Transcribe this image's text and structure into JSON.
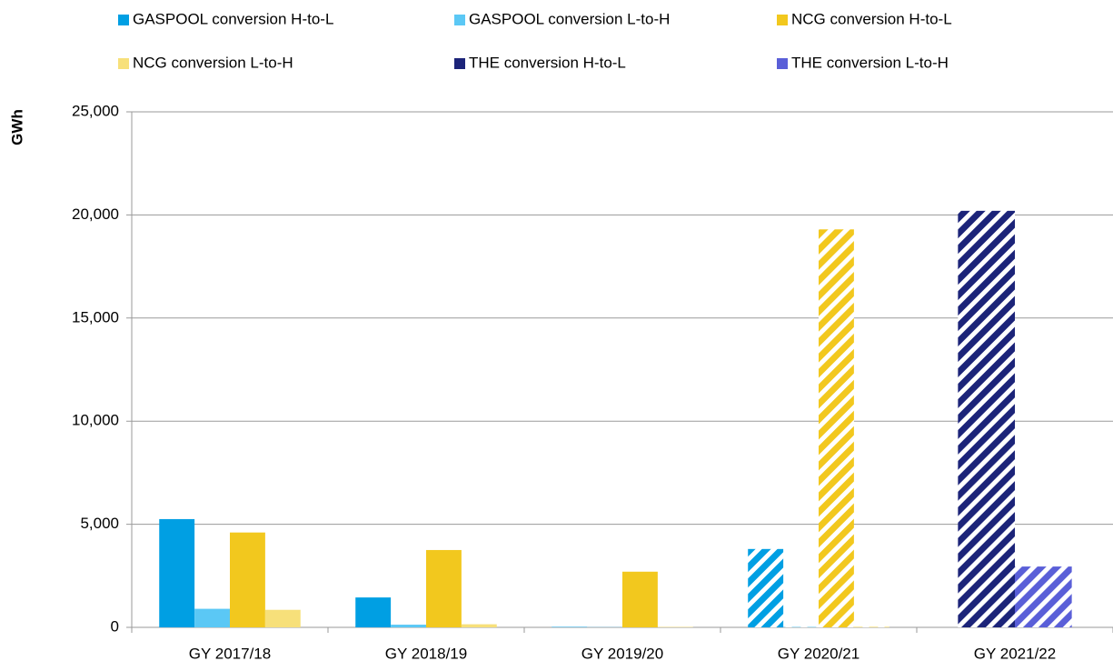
{
  "chart_data": {
    "type": "bar",
    "y_label": "GWh",
    "categories": [
      "GY 2017/18",
      "GY 2018/19",
      "GY 2019/20",
      "GY 2020/21",
      "GY 2021/22"
    ],
    "category_pattern": [
      "solid",
      "solid",
      "solid",
      "hatched",
      "hatched"
    ],
    "series": [
      {
        "name": "GASPOOL conversion H-to-L",
        "color": "#009fe3",
        "values": [
          5250,
          1450,
          20,
          3800,
          null
        ]
      },
      {
        "name": "GASPOOL conversion L-to-H",
        "color": "#5bc8f5",
        "values": [
          900,
          130,
          10,
          20,
          null
        ]
      },
      {
        "name": "NCG conversion H-to-L",
        "color": "#f2c81e",
        "values": [
          4600,
          3750,
          2700,
          19300,
          null
        ]
      },
      {
        "name": "NCG conversion L-to-H",
        "color": "#f7e07a",
        "values": [
          850,
          150,
          20,
          30,
          null
        ]
      },
      {
        "name": "THE conversion H-to-L",
        "color": "#1c2479",
        "values": [
          null,
          null,
          null,
          null,
          20200
        ]
      },
      {
        "name": "THE conversion L-to-H",
        "color": "#5a5fd8",
        "values": [
          null,
          null,
          null,
          null,
          2950
        ]
      }
    ],
    "ylim": [
      0,
      25000
    ],
    "yticks": [
      {
        "value": 0,
        "label": "0"
      },
      {
        "value": 5000,
        "label": "5,000"
      },
      {
        "value": 10000,
        "label": "10,000"
      },
      {
        "value": 15000,
        "label": "15,000"
      },
      {
        "value": 20000,
        "label": "20,000"
      },
      {
        "value": 25000,
        "label": "25,000"
      }
    ],
    "grid": true,
    "legend": "top"
  }
}
